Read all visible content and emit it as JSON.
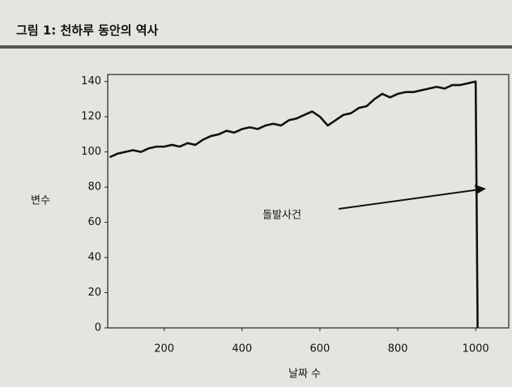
{
  "chart_data": {
    "type": "line",
    "title": "그림 1: 천하루 동안의 역사",
    "xlabel": "날짜 수",
    "ylabel": "변수",
    "annotation": "돌발사건",
    "x": [
      60,
      80,
      100,
      120,
      140,
      160,
      180,
      200,
      220,
      240,
      260,
      280,
      300,
      320,
      340,
      360,
      380,
      400,
      420,
      440,
      460,
      480,
      500,
      520,
      540,
      560,
      580,
      600,
      620,
      640,
      660,
      680,
      700,
      720,
      740,
      760,
      780,
      800,
      820,
      840,
      860,
      880,
      900,
      920,
      940,
      960,
      980,
      1000,
      1005
    ],
    "series": [
      {
        "name": "변수",
        "color": "#111111",
        "values": [
          97,
          99,
          100,
          101,
          100,
          102,
          103,
          103,
          104,
          103,
          105,
          104,
          107,
          109,
          110,
          112,
          111,
          113,
          114,
          113,
          115,
          116,
          115,
          118,
          119,
          121,
          123,
          120,
          115,
          118,
          121,
          122,
          125,
          126,
          130,
          133,
          131,
          133,
          134,
          134,
          135,
          136,
          137,
          136,
          138,
          138,
          139,
          140,
          0
        ]
      }
    ],
    "xlim": [
      55,
      1085
    ],
    "xticks": [
      200,
      400,
      600,
      800,
      1000
    ],
    "ylim": [
      0,
      144
    ],
    "yticks": [
      0,
      20,
      40,
      60,
      80,
      100,
      120,
      140
    ]
  }
}
